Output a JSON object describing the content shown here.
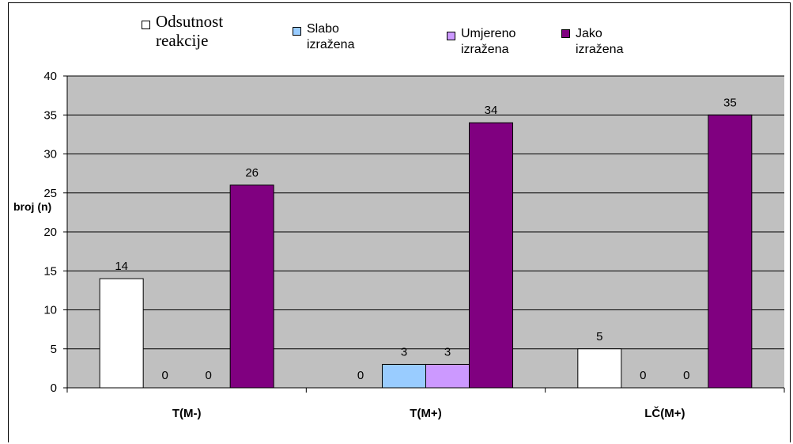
{
  "chart_data": {
    "type": "bar",
    "categories": [
      "T(M-)",
      "T(M+)",
      "LČ(M+)"
    ],
    "series": [
      {
        "name": "Odsutnost reakcije",
        "values": [
          14,
          0,
          5
        ],
        "color": "#ffffff"
      },
      {
        "name": "Slabo izražena",
        "values": [
          0,
          3,
          0
        ],
        "color": "#99ccff"
      },
      {
        "name": "Umjereno izražena",
        "values": [
          0,
          3,
          0
        ],
        "color": "#cc99ff"
      },
      {
        "name": "Jako izražena",
        "values": [
          26,
          34,
          35
        ],
        "color": "#800080"
      }
    ],
    "title": "",
    "xlabel": "",
    "ylabel": "broj (n)",
    "ylim": [
      0,
      40
    ],
    "yticks": [
      0,
      5,
      10,
      15,
      20,
      25,
      30,
      35,
      40
    ],
    "grid": true,
    "plot_background": "#c0c0c0",
    "legend_position": "top",
    "data_labels": true
  },
  "legend": [
    {
      "line1": "Odsutnost",
      "line2": "reakcije"
    },
    {
      "line1": "Slabo",
      "line2": "izražena"
    },
    {
      "line1": "Umjereno",
      "line2": "izražena"
    },
    {
      "line1": "Jako",
      "line2": "izražena"
    }
  ]
}
